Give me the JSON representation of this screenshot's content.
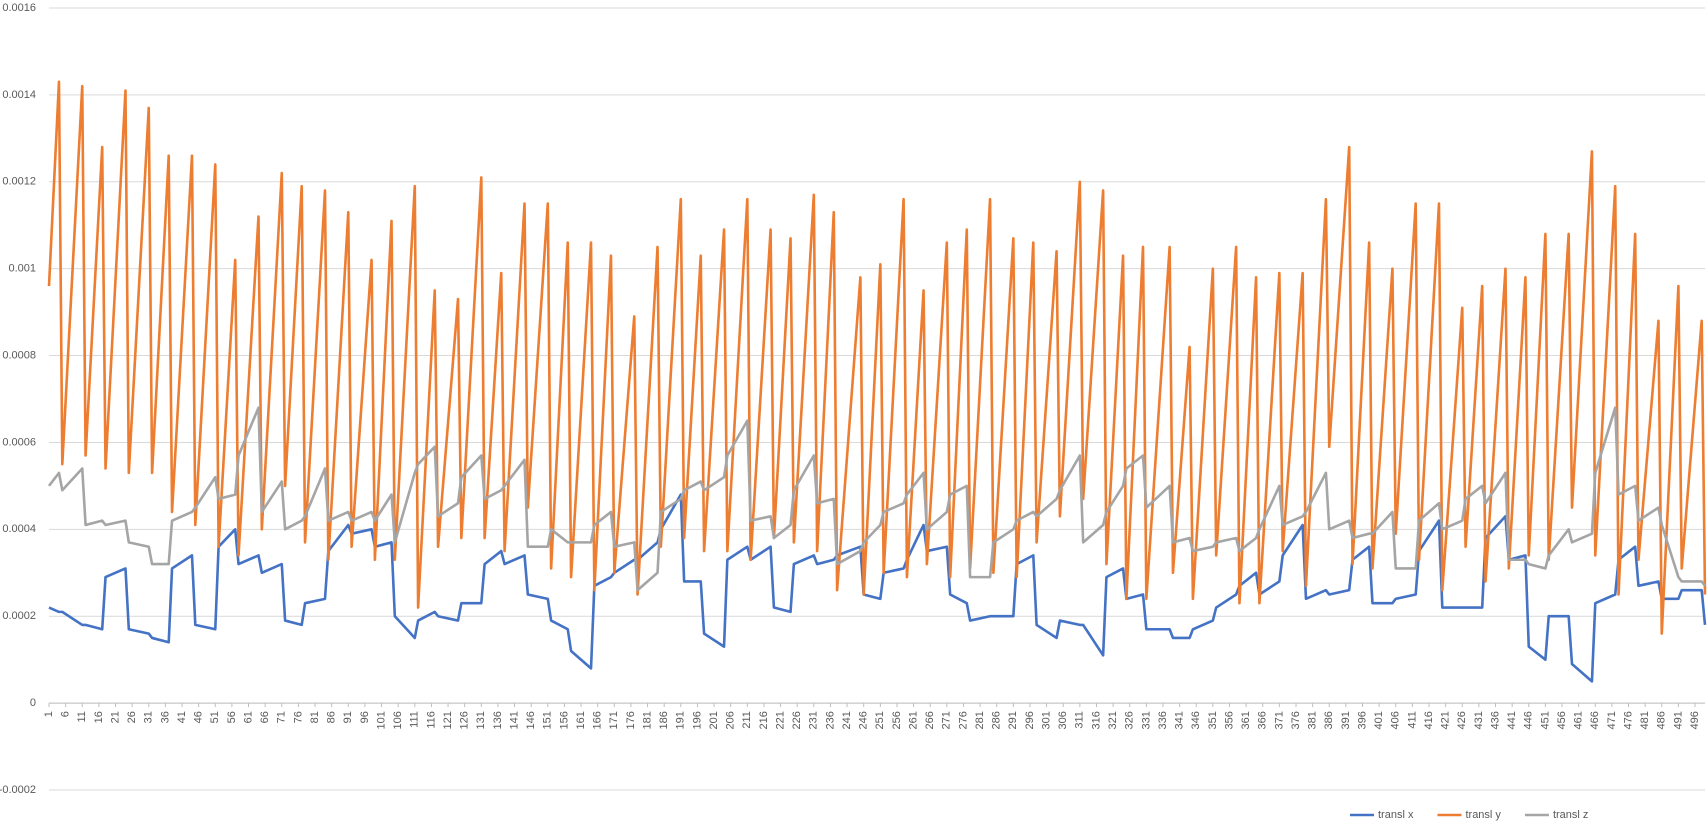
{
  "chart_data": {
    "type": "line",
    "x": [
      1,
      4,
      5,
      11,
      12,
      17,
      18,
      24,
      25,
      31,
      32,
      37,
      38,
      44,
      45,
      51,
      52,
      57,
      58,
      64,
      65,
      71,
      72,
      77,
      78,
      84,
      85,
      91,
      92,
      98,
      99,
      104,
      105,
      111,
      112,
      117,
      118,
      124,
      125,
      131,
      132,
      137,
      138,
      144,
      145,
      151,
      152,
      157,
      158,
      164,
      165,
      170,
      171,
      177,
      178,
      184,
      185,
      191,
      192,
      197,
      198,
      204,
      205,
      211,
      212,
      218,
      219,
      224,
      225,
      231,
      232,
      237,
      238,
      245,
      246,
      251,
      252,
      258,
      259,
      264,
      265,
      271,
      272,
      277,
      278,
      284,
      285,
      291,
      292,
      297,
      298,
      304,
      305,
      311,
      312,
      318,
      319,
      324,
      325,
      330,
      331,
      338,
      339,
      344,
      345,
      351,
      352,
      358,
      359,
      364,
      365,
      371,
      372,
      378,
      379,
      385,
      386,
      392,
      393,
      398,
      399,
      405,
      406,
      412,
      413,
      419,
      420,
      426,
      427,
      432,
      433,
      439,
      440,
      445,
      446,
      451,
      452,
      458,
      459,
      465,
      466,
      472,
      473,
      478,
      479,
      485,
      486,
      491,
      492,
      498,
      499
    ],
    "series": [
      {
        "name": "transl x",
        "color": "#4472c4",
        "values": [
          0.00022,
          0.00021,
          0.00021,
          0.00018,
          0.00018,
          0.00017,
          0.00029,
          0.00031,
          0.00017,
          0.00016,
          0.00015,
          0.00014,
          0.00031,
          0.00034,
          0.00018,
          0.00017,
          0.00036,
          0.0004,
          0.00032,
          0.00034,
          0.0003,
          0.00032,
          0.00019,
          0.00018,
          0.00023,
          0.00024,
          0.00035,
          0.00041,
          0.00039,
          0.0004,
          0.00036,
          0.00037,
          0.0002,
          0.00015,
          0.00019,
          0.00021,
          0.0002,
          0.00019,
          0.00023,
          0.00023,
          0.00032,
          0.00035,
          0.00032,
          0.00034,
          0.00025,
          0.00024,
          0.00019,
          0.00017,
          0.00012,
          8e-05,
          0.00027,
          0.00029,
          0.0003,
          0.00033,
          0.00033,
          0.00037,
          0.0004,
          0.00048,
          0.00028,
          0.00028,
          0.00016,
          0.00013,
          0.00033,
          0.00036,
          0.00033,
          0.00036,
          0.00022,
          0.00021,
          0.00032,
          0.00034,
          0.00032,
          0.00033,
          0.00034,
          0.00036,
          0.00025,
          0.00024,
          0.0003,
          0.00031,
          0.00033,
          0.00041,
          0.00035,
          0.00036,
          0.00025,
          0.00023,
          0.00019,
          0.0002,
          0.0002,
          0.0002,
          0.00032,
          0.00034,
          0.00018,
          0.00015,
          0.00019,
          0.00018,
          0.00018,
          0.00011,
          0.00029,
          0.00031,
          0.00024,
          0.00025,
          0.00017,
          0.00017,
          0.00015,
          0.00015,
          0.00017,
          0.00019,
          0.00022,
          0.00025,
          0.00027,
          0.0003,
          0.00025,
          0.00028,
          0.00034,
          0.00041,
          0.00024,
          0.00026,
          0.00025,
          0.00026,
          0.00033,
          0.00036,
          0.00023,
          0.00023,
          0.00024,
          0.00025,
          0.00035,
          0.00042,
          0.00022,
          0.00022,
          0.00022,
          0.00022,
          0.00038,
          0.00043,
          0.00033,
          0.00034,
          0.00013,
          0.0001,
          0.0002,
          0.0002,
          9e-05,
          5e-05,
          0.00023,
          0.00025,
          0.00033,
          0.00036,
          0.00027,
          0.00028,
          0.00024,
          0.00024,
          0.00026,
          0.00026,
          0.00018
        ]
      },
      {
        "name": "transl y",
        "color": "#ed7d31",
        "values": [
          0.00096,
          0.00143,
          0.00055,
          0.00142,
          0.00057,
          0.00128,
          0.00054,
          0.00141,
          0.00053,
          0.00137,
          0.00053,
          0.00126,
          0.00044,
          0.00126,
          0.00041,
          0.00124,
          0.00036,
          0.00102,
          0.00034,
          0.00112,
          0.0004,
          0.00122,
          0.0005,
          0.00119,
          0.00037,
          0.00118,
          0.00033,
          0.00113,
          0.00036,
          0.00102,
          0.00033,
          0.00111,
          0.00033,
          0.00119,
          0.00022,
          0.00095,
          0.00036,
          0.00093,
          0.00038,
          0.00121,
          0.00038,
          0.00099,
          0.00035,
          0.00115,
          0.00045,
          0.00115,
          0.00031,
          0.00106,
          0.00029,
          0.00106,
          0.00026,
          0.00103,
          0.0003,
          0.00089,
          0.00025,
          0.00105,
          0.00036,
          0.00116,
          0.00038,
          0.00103,
          0.00035,
          0.00109,
          0.00035,
          0.00116,
          0.00033,
          0.00109,
          0.00038,
          0.00107,
          0.00037,
          0.00117,
          0.00035,
          0.00113,
          0.00026,
          0.00098,
          0.00025,
          0.00101,
          0.0003,
          0.00116,
          0.00029,
          0.00095,
          0.00032,
          0.00106,
          0.00029,
          0.00109,
          0.00031,
          0.00116,
          0.0003,
          0.00107,
          0.00029,
          0.00106,
          0.00037,
          0.00104,
          0.00043,
          0.0012,
          0.00047,
          0.00118,
          0.00032,
          0.00103,
          0.00024,
          0.00105,
          0.00024,
          0.00105,
          0.0003,
          0.00082,
          0.00024,
          0.001,
          0.00034,
          0.00105,
          0.00023,
          0.00098,
          0.00023,
          0.00099,
          0.00035,
          0.00099,
          0.00027,
          0.00116,
          0.00059,
          0.00128,
          0.00032,
          0.00106,
          0.00031,
          0.001,
          0.00039,
          0.00115,
          0.00033,
          0.00115,
          0.00026,
          0.00091,
          0.00036,
          0.00096,
          0.00028,
          0.001,
          0.00031,
          0.00098,
          0.00034,
          0.00108,
          0.00033,
          0.00108,
          0.00045,
          0.00127,
          0.00034,
          0.00119,
          0.00025,
          0.00108,
          0.00033,
          0.00088,
          0.00016,
          0.00096,
          0.00031,
          0.00088,
          0.00025
        ]
      },
      {
        "name": "transl z",
        "color": "#a5a5a5",
        "values": [
          0.0005,
          0.00053,
          0.00049,
          0.00054,
          0.00041,
          0.00042,
          0.00041,
          0.00042,
          0.00037,
          0.00036,
          0.00032,
          0.00032,
          0.00042,
          0.00044,
          0.00045,
          0.00052,
          0.00047,
          0.00048,
          0.00057,
          0.00068,
          0.00044,
          0.00051,
          0.0004,
          0.00042,
          0.00043,
          0.00054,
          0.00042,
          0.00044,
          0.00042,
          0.00044,
          0.00042,
          0.00048,
          0.00037,
          0.00053,
          0.00055,
          0.00059,
          0.00043,
          0.00046,
          0.00052,
          0.00057,
          0.00047,
          0.00049,
          0.0005,
          0.00056,
          0.00036,
          0.00036,
          0.0004,
          0.00037,
          0.00037,
          0.00037,
          0.00041,
          0.00044,
          0.00036,
          0.00037,
          0.00026,
          0.0003,
          0.00044,
          0.00047,
          0.00049,
          0.00051,
          0.00049,
          0.00052,
          0.00057,
          0.00065,
          0.00042,
          0.00043,
          0.00038,
          0.00041,
          0.00049,
          0.00057,
          0.00046,
          0.00047,
          0.00032,
          0.00035,
          0.00037,
          0.00041,
          0.00044,
          0.00046,
          0.00048,
          0.00053,
          0.0004,
          0.00044,
          0.00048,
          0.0005,
          0.00029,
          0.00029,
          0.00037,
          0.0004,
          0.00042,
          0.00044,
          0.00043,
          0.00047,
          0.00049,
          0.00057,
          0.00037,
          0.00041,
          0.00044,
          0.0005,
          0.00054,
          0.00057,
          0.00045,
          0.0005,
          0.00037,
          0.00038,
          0.00035,
          0.00036,
          0.00037,
          0.00038,
          0.00035,
          0.00038,
          0.0004,
          0.0005,
          0.00041,
          0.00043,
          0.00044,
          0.00053,
          0.0004,
          0.00042,
          0.00038,
          0.00039,
          0.00039,
          0.00044,
          0.00031,
          0.00031,
          0.00042,
          0.00046,
          0.0004,
          0.00042,
          0.00047,
          0.0005,
          0.00046,
          0.00053,
          0.00033,
          0.00033,
          0.00032,
          0.00031,
          0.00034,
          0.0004,
          0.00037,
          0.00039,
          0.00053,
          0.00068,
          0.00048,
          0.0005,
          0.00042,
          0.00045,
          0.00041,
          0.00029,
          0.00028,
          0.00028,
          0.00027
        ]
      }
    ],
    "xlim": [
      1,
      499
    ],
    "xticks": [
      1,
      6,
      11,
      16,
      21,
      26,
      31,
      36,
      41,
      46,
      51,
      56,
      61,
      66,
      71,
      76,
      81,
      86,
      91,
      96,
      101,
      106,
      111,
      116,
      121,
      126,
      131,
      136,
      141,
      146,
      151,
      156,
      161,
      166,
      171,
      176,
      181,
      186,
      191,
      196,
      201,
      206,
      211,
      216,
      221,
      226,
      231,
      236,
      241,
      246,
      251,
      256,
      261,
      266,
      271,
      276,
      281,
      286,
      291,
      296,
      301,
      306,
      311,
      316,
      321,
      326,
      331,
      336,
      341,
      346,
      351,
      356,
      361,
      366,
      371,
      376,
      381,
      386,
      391,
      396,
      401,
      406,
      411,
      416,
      421,
      426,
      431,
      436,
      441,
      446,
      451,
      456,
      461,
      466,
      471,
      476,
      481,
      486,
      491,
      496
    ],
    "ylim": [
      -0.0002,
      0.0016
    ],
    "yticks": [
      -0.0002,
      0,
      0.0002,
      0.0004,
      0.0006,
      0.0008,
      0.001,
      0.0012,
      0.0014,
      0.0016
    ],
    "grid": true,
    "legend": "bottom"
  }
}
